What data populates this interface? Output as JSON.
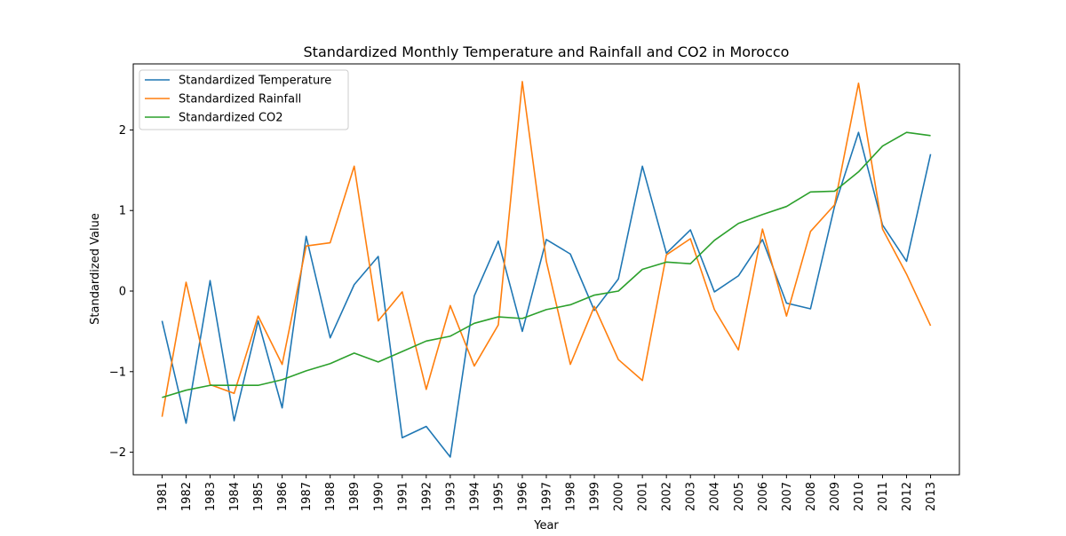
{
  "chart_data": {
    "type": "line",
    "title": "Standardized Monthly Temperature and Rainfall and CO2 in Morocco",
    "xlabel": "Year",
    "ylabel": "Standardized Value",
    "x": [
      1981,
      1982,
      1983,
      1984,
      1985,
      1986,
      1987,
      1988,
      1989,
      1990,
      1991,
      1992,
      1993,
      1994,
      1995,
      1996,
      1997,
      1998,
      1999,
      2000,
      2001,
      2002,
      2003,
      2004,
      2005,
      2006,
      2007,
      2008,
      2009,
      2010,
      2011,
      2012,
      2013
    ],
    "yticks": [
      -2,
      -1,
      0,
      1,
      2
    ],
    "ytick_labels": [
      "−2",
      "−1",
      "0",
      "1",
      "2"
    ],
    "ylim": [
      -2.28,
      2.82
    ],
    "xlim": [
      1979.8,
      2014.2
    ],
    "grid": false,
    "legend": "top-left",
    "series": [
      {
        "name": "Standardized Temperature",
        "color": "#1f77b4",
        "values": [
          -0.37,
          -1.64,
          0.13,
          -1.61,
          -0.37,
          -1.45,
          0.68,
          -0.58,
          0.08,
          0.43,
          -1.82,
          -1.68,
          -2.06,
          -0.06,
          0.62,
          -0.5,
          0.64,
          0.46,
          -0.24,
          0.15,
          1.55,
          0.47,
          0.76,
          -0.01,
          0.19,
          0.64,
          -0.15,
          -0.22,
          1.05,
          1.97,
          0.82,
          0.37,
          1.7
        ]
      },
      {
        "name": "Standardized Rainfall",
        "color": "#ff7f0e",
        "values": [
          -1.56,
          0.11,
          -1.16,
          -1.27,
          -0.31,
          -0.91,
          0.56,
          0.6,
          1.55,
          -0.37,
          -0.01,
          -1.22,
          -0.18,
          -0.93,
          -0.42,
          2.6,
          0.37,
          -0.91,
          -0.19,
          -0.85,
          -1.11,
          0.45,
          0.65,
          -0.23,
          -0.73,
          0.77,
          -0.31,
          0.74,
          1.07,
          2.58,
          0.77,
          0.21,
          -0.43
        ]
      },
      {
        "name": "Standardized CO2",
        "color": "#2ca02c",
        "values": [
          -1.32,
          -1.23,
          -1.17,
          -1.17,
          -1.17,
          -1.1,
          -0.99,
          -0.9,
          -0.77,
          -0.88,
          -0.75,
          -0.62,
          -0.56,
          -0.4,
          -0.32,
          -0.34,
          -0.23,
          -0.17,
          -0.05,
          0.0,
          0.27,
          0.36,
          0.34,
          0.63,
          0.84,
          0.95,
          1.05,
          1.23,
          1.24,
          1.48,
          1.8,
          1.97,
          1.93
        ]
      }
    ]
  }
}
